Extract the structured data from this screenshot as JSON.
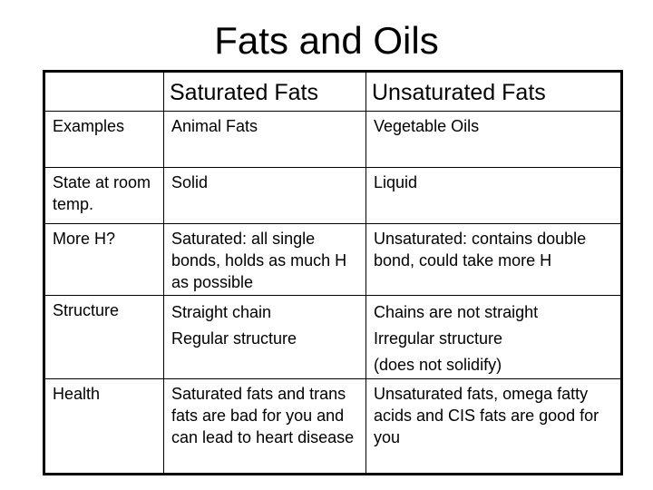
{
  "title": "Fats and Oils",
  "table": {
    "headers": [
      "",
      "Saturated Fats",
      "Unsaturated Fats"
    ],
    "rows": [
      {
        "label": "Examples",
        "saturated": [
          "Animal Fats"
        ],
        "unsaturated": [
          "Vegetable Oils"
        ]
      },
      {
        "label": "State at room temp.",
        "saturated": [
          "Solid"
        ],
        "unsaturated": [
          "Liquid"
        ]
      },
      {
        "label": "More H?",
        "saturated": [
          "Saturated: all single bonds, holds as much H as possible"
        ],
        "unsaturated": [
          "Unsaturated: contains double bond, could take more H"
        ]
      },
      {
        "label": "Structure",
        "saturated": [
          "Straight chain",
          "Regular structure"
        ],
        "unsaturated": [
          "Chains are not straight",
          "Irregular structure",
          "(does not solidify)"
        ]
      },
      {
        "label": "Health",
        "saturated": [
          "Saturated fats and trans fats are bad for you and can lead to heart disease"
        ],
        "unsaturated": [
          "Unsaturated fats, omega fatty acids and CIS fats are good for you"
        ]
      }
    ]
  }
}
